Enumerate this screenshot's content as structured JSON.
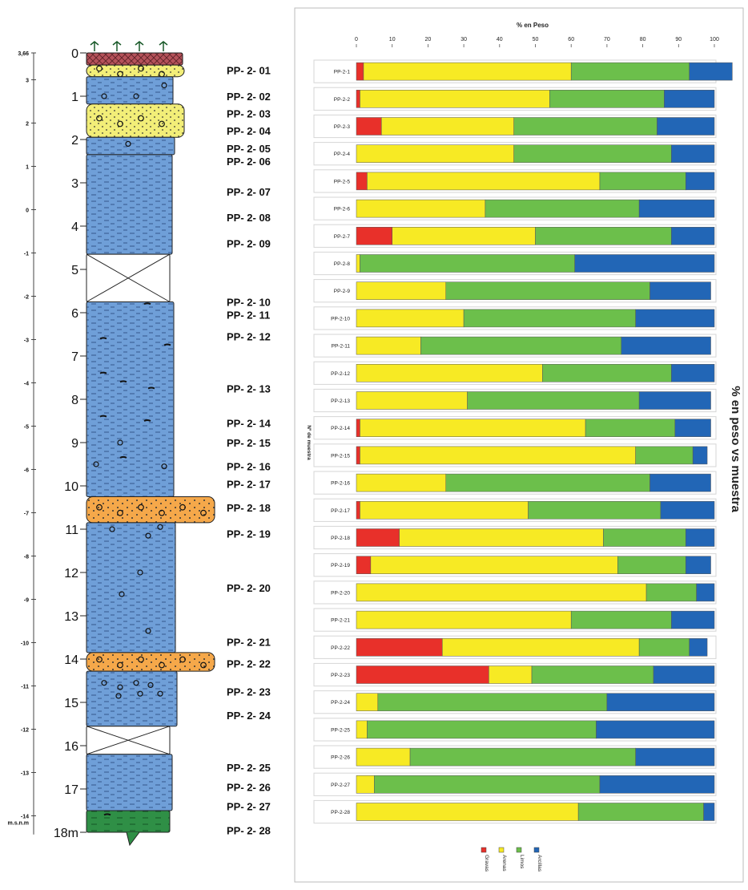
{
  "column": {
    "depth_labels": [
      "0",
      "1",
      "2",
      "3",
      "4",
      "5",
      "6",
      "7",
      "8",
      "9",
      "10",
      "11",
      "12",
      "13",
      "14",
      "15",
      "16",
      "17",
      "18m"
    ],
    "elevation_labels": [
      "3,66",
      "3",
      "2",
      "1",
      "0",
      "-1",
      "-2",
      "-3",
      "-4",
      "-5",
      "-6",
      "-7",
      "-8",
      "-9",
      "-10",
      "-11",
      "-12",
      "-13",
      "-14"
    ],
    "elevation_unit": "m.s.n.m",
    "sample_labels": [
      {
        "text": "PP- 2- 01",
        "depth": 0.4
      },
      {
        "text": "PP- 2- 02",
        "depth": 1.0
      },
      {
        "text": "PP- 2- 03",
        "depth": 1.4
      },
      {
        "text": "PP- 2- 04",
        "depth": 1.8
      },
      {
        "text": "PP- 2- 05",
        "depth": 2.2
      },
      {
        "text": "PP- 2- 06",
        "depth": 2.5
      },
      {
        "text": "PP- 2- 07",
        "depth": 3.2
      },
      {
        "text": "PP- 2- 08",
        "depth": 3.8
      },
      {
        "text": "PP- 2- 09",
        "depth": 4.4
      },
      {
        "text": "PP- 2- 10",
        "depth": 5.75
      },
      {
        "text": "PP- 2- 11",
        "depth": 6.05
      },
      {
        "text": "PP- 2- 12",
        "depth": 6.55
      },
      {
        "text": "PP- 2- 13",
        "depth": 7.75
      },
      {
        "text": "PP- 2- 14",
        "depth": 8.55
      },
      {
        "text": "PP- 2- 15",
        "depth": 9.0
      },
      {
        "text": "PP- 2- 16",
        "depth": 9.55
      },
      {
        "text": "PP- 2- 17",
        "depth": 9.95
      },
      {
        "text": "PP- 2- 18",
        "depth": 10.5
      },
      {
        "text": "PP- 2- 19",
        "depth": 11.1
      },
      {
        "text": "PP- 2- 20",
        "depth": 12.35
      },
      {
        "text": "PP- 2- 21",
        "depth": 13.6
      },
      {
        "text": "PP- 2- 22",
        "depth": 14.1
      },
      {
        "text": "PP- 2- 23",
        "depth": 14.75
      },
      {
        "text": "PP- 2- 24",
        "depth": 15.3
      },
      {
        "text": "PP- 2- 25",
        "depth": 16.5
      },
      {
        "text": "PP- 2- 26",
        "depth": 16.95
      },
      {
        "text": "PP- 2- 27",
        "depth": 17.4
      },
      {
        "text": "PP- 2- 28",
        "depth": 17.95
      }
    ],
    "layers": [
      {
        "from": 0.0,
        "to": 0.28,
        "lithology": "soil",
        "color": "#b5525a"
      },
      {
        "from": 0.28,
        "to": 0.55,
        "lithology": "sand",
        "color": "#f2ee78"
      },
      {
        "from": 0.55,
        "to": 1.18,
        "lithology": "clay",
        "color": "#6f9fd8"
      },
      {
        "from": 1.18,
        "to": 1.95,
        "lithology": "sand",
        "color": "#f2ee78"
      },
      {
        "from": 1.95,
        "to": 2.35,
        "lithology": "clay",
        "color": "#6f9fd8"
      },
      {
        "from": 2.35,
        "to": 4.65,
        "lithology": "clay",
        "color": "#6f9fd8"
      },
      {
        "from": 4.65,
        "to": 5.75,
        "lithology": "no recovery",
        "color": "#ffffff"
      },
      {
        "from": 5.75,
        "to": 10.25,
        "lithology": "clay",
        "color": "#6f9fd8"
      },
      {
        "from": 10.25,
        "to": 10.85,
        "lithology": "gravel",
        "color": "#f5a84a"
      },
      {
        "from": 10.85,
        "to": 13.85,
        "lithology": "clay",
        "color": "#6f9fd8"
      },
      {
        "from": 13.85,
        "to": 14.28,
        "lithology": "gravel",
        "color": "#f5a84a"
      },
      {
        "from": 14.28,
        "to": 15.55,
        "lithology": "clay",
        "color": "#6f9fd8"
      },
      {
        "from": 15.55,
        "to": 16.2,
        "lithology": "no recovery",
        "color": "#ffffff"
      },
      {
        "from": 16.2,
        "to": 17.5,
        "lithology": "clay",
        "color": "#6f9fd8"
      },
      {
        "from": 17.5,
        "to": 18.0,
        "lithology": "peat",
        "color": "#2f8f46"
      }
    ]
  },
  "chart_data": {
    "type": "bar",
    "orientation": "horizontal",
    "stacked": true,
    "title": "% en Peso",
    "ylabel": "Nº de muestra",
    "side_label": "% en peso vs muestra",
    "xlim": [
      0,
      100
    ],
    "xticks": [
      0,
      10,
      20,
      30,
      40,
      50,
      60,
      70,
      80,
      90,
      100
    ],
    "legend_position": "bottom",
    "categories": [
      "PP-2-1",
      "PP-2-2",
      "PP-2-3",
      "PP-2-4",
      "PP-2-5",
      "PP-2-6",
      "PP-2-7",
      "PP-2-8",
      "PP-2-9",
      "PP-2-10",
      "PP-2-11",
      "PP-2-12",
      "PP-2-13",
      "PP-2-14",
      "PP-2-15",
      "PP-2-16",
      "PP-2-17",
      "PP-2-18",
      "PP-2-19",
      "PP-2-20",
      "PP-2-21",
      "PP-2-22",
      "PP-2-23",
      "PP-2-24",
      "PP-2-25",
      "PP-2-26",
      "PP-2-27",
      "PP-2-28"
    ],
    "series": [
      {
        "name": "Gravas",
        "color": "#e8302a",
        "values": [
          2,
          1,
          7,
          0,
          3,
          0,
          10,
          0,
          0,
          0,
          0,
          0,
          0,
          1,
          1,
          0,
          1,
          12,
          4,
          0,
          0,
          24,
          37,
          0,
          0,
          0,
          0,
          0
        ]
      },
      {
        "name": "Arenas",
        "color": "#f7ea24",
        "values": [
          58,
          53,
          37,
          44,
          65,
          36,
          40,
          1,
          25,
          30,
          18,
          52,
          31,
          63,
          77,
          25,
          47,
          57,
          69,
          81,
          60,
          55,
          12,
          6,
          3,
          15,
          5,
          62
        ]
      },
      {
        "name": "Limos",
        "color": "#6cbf4b",
        "values": [
          33,
          32,
          40,
          44,
          24,
          43,
          38,
          60,
          57,
          48,
          56,
          36,
          48,
          25,
          16,
          57,
          37,
          23,
          19,
          14,
          28,
          14,
          34,
          64,
          64,
          63,
          63,
          35
        ]
      },
      {
        "name": "Arcillas",
        "color": "#2266b6",
        "values": [
          12,
          14,
          16,
          12,
          8,
          21,
          12,
          39,
          17,
          22,
          25,
          12,
          20,
          10,
          4,
          17,
          15,
          8,
          7,
          5,
          12,
          5,
          17,
          30,
          33,
          22,
          32,
          3
        ]
      }
    ]
  }
}
